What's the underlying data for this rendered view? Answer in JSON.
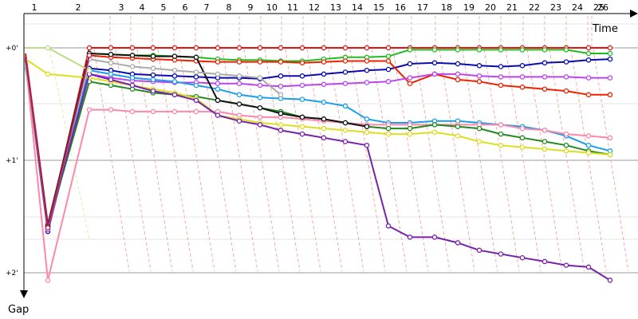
{
  "chart_data": {
    "type": "line",
    "x_axis_title": "Time",
    "y_axis_title": "Gap",
    "lap_labels": [
      "1",
      "2",
      "3",
      "4",
      "5",
      "6",
      "7",
      "8",
      "9",
      "10",
      "11",
      "12",
      "13",
      "14",
      "15",
      "16",
      "17",
      "18",
      "19",
      "20",
      "21",
      "22",
      "23",
      "24",
      "25",
      "26"
    ],
    "gap_labels": [
      {
        "label": "+0'",
        "seconds": 0
      },
      {
        "label": "+1'",
        "seconds": 60
      },
      {
        "label": "+2'",
        "seconds": 120
      }
    ],
    "ylim": [
      -12,
      128
    ],
    "grid": true,
    "series": [
      {
        "color": "#e81010",
        "values": [
          4,
          96,
          0,
          0,
          0,
          0,
          0,
          0,
          0,
          0,
          0,
          0,
          0,
          0,
          0,
          0,
          0,
          0,
          0,
          0,
          0,
          0,
          0,
          0,
          0,
          0,
          0
        ]
      },
      {
        "color": "#22bb22",
        "values": [
          5,
          95,
          3,
          3.5,
          4,
          4,
          4.5,
          5,
          6,
          6.5,
          6.5,
          7,
          7,
          6,
          5,
          5,
          4.5,
          1,
          1,
          1,
          1,
          1,
          1,
          1,
          1,
          3,
          3
        ]
      },
      {
        "color": "#0a0ab0",
        "values": [
          8,
          98,
          11,
          12,
          14,
          14.5,
          15,
          15.5,
          16,
          16,
          16.5,
          15,
          15,
          14,
          13,
          12,
          11.5,
          8.5,
          8,
          8.5,
          9.5,
          10,
          9.5,
          8,
          7.5,
          6.5,
          6
        ]
      },
      {
        "color": "#ee2200",
        "values": [
          3,
          94,
          4,
          5,
          5.5,
          6,
          6.5,
          7,
          7.5,
          7.5,
          7.5,
          7.5,
          8,
          7.5,
          7,
          7,
          7,
          19,
          14,
          17,
          18,
          20,
          21,
          22,
          23,
          25,
          25
        ]
      },
      {
        "color": "#bb44ee",
        "values": [
          7,
          97,
          14,
          16,
          17.5,
          18,
          18.5,
          18.5,
          19,
          19,
          20,
          20.5,
          20,
          19.5,
          19,
          18.5,
          18,
          16,
          14,
          14,
          15,
          15.5,
          15.5,
          15.5,
          15.5,
          16,
          16
        ]
      },
      {
        "color": "#1a9ee8",
        "values": [
          10,
          95,
          12,
          14,
          16,
          17,
          18,
          20,
          22,
          25,
          26.5,
          27,
          27.5,
          29,
          31,
          38,
          40,
          40,
          39,
          39,
          40,
          41,
          42,
          44,
          47,
          52,
          55
        ]
      },
      {
        "color": "#ff88aa",
        "values": [
          7,
          124,
          33,
          33,
          34,
          34,
          34,
          34,
          34,
          36,
          37,
          37,
          38,
          39,
          40,
          41,
          41,
          41,
          41,
          41,
          41,
          41,
          43,
          44,
          46,
          47,
          48
        ]
      },
      {
        "color": "#228822",
        "values": [
          6,
          95,
          18,
          20,
          22,
          24,
          25,
          26,
          28,
          30,
          32,
          34,
          37,
          38,
          40,
          42,
          43,
          43,
          41,
          42,
          43,
          46,
          48,
          50,
          52,
          55,
          57
        ]
      },
      {
        "color": "#dddd22",
        "values": [
          6,
          14,
          16,
          18,
          20,
          22,
          24,
          27,
          36,
          38,
          40,
          41,
          42,
          43,
          44,
          45,
          46,
          46,
          45,
          47,
          50,
          52,
          53,
          54,
          55,
          56,
          57
        ]
      },
      {
        "color": "#7722aa",
        "values": [
          5,
          95,
          14,
          17,
          20,
          23,
          25,
          28,
          36,
          39,
          41,
          44,
          46,
          48,
          50,
          52,
          95,
          101,
          101,
          104,
          108,
          110,
          112,
          114,
          116,
          117,
          124
        ]
      },
      {
        "color": "#111111",
        "values": [
          6,
          95,
          3,
          3.5,
          4,
          4.5,
          4.5,
          5,
          28,
          30,
          32,
          35,
          37,
          38,
          40,
          42
        ]
      },
      {
        "color": "#aaaaaa",
        "values": [
          8,
          96,
          6,
          8,
          10,
          11,
          12,
          13,
          14,
          15,
          16,
          25
        ]
      },
      {
        "color": "#bbdd88",
        "values": [
          0,
          0,
          12
        ]
      },
      {
        "color": "#aa2255",
        "values": [
          5,
          96,
          4
        ]
      }
    ]
  }
}
